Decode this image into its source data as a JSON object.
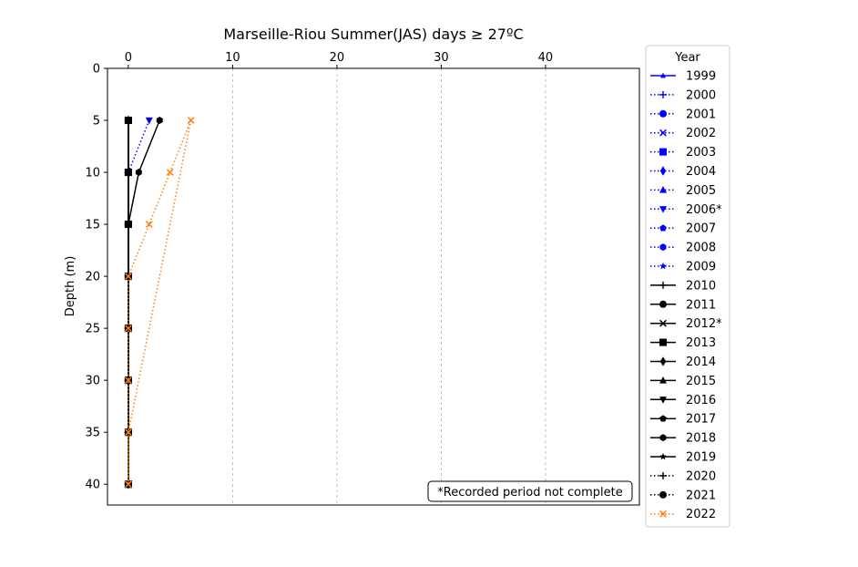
{
  "chart_data": {
    "type": "line",
    "title": "Marseille-Riou Summer(JAS) days ≥ 27ºC",
    "xlabel": "",
    "ylabel": "Depth (m)",
    "xlim": [
      -2,
      49
    ],
    "ylim": [
      42,
      0
    ],
    "x_ticks": [
      0,
      10,
      20,
      30,
      40
    ],
    "y_ticks": [
      0,
      5,
      10,
      15,
      20,
      25,
      30,
      35,
      40
    ],
    "x_axis_position": "top",
    "y_inverted": true,
    "grid": "vertical dashed",
    "legend_title": "Year",
    "legend_position": "right outside",
    "depths": [
      5,
      10,
      15,
      20,
      25,
      30,
      35,
      40
    ],
    "note": "*Recorded period not complete",
    "series": [
      {
        "name": "1999",
        "color": "#0000ff",
        "linestyle": "solid",
        "marker": "tri-up-small",
        "values": [
          0,
          0,
          0,
          0,
          0,
          0,
          0,
          0
        ]
      },
      {
        "name": "2000",
        "color": "#0000ff",
        "linestyle": "dotted",
        "marker": "plus",
        "values": [
          0,
          0,
          0,
          0,
          0,
          0,
          0,
          0
        ]
      },
      {
        "name": "2001",
        "color": "#0000ff",
        "linestyle": "dotted",
        "marker": "circle",
        "values": [
          0,
          0,
          0,
          0,
          0,
          0,
          0,
          0
        ]
      },
      {
        "name": "2002",
        "color": "#0000ff",
        "linestyle": "dotted",
        "marker": "x",
        "values": [
          0,
          0,
          0,
          0,
          0,
          0,
          0,
          0
        ]
      },
      {
        "name": "2003",
        "color": "#0000ff",
        "linestyle": "dotted",
        "marker": "square",
        "values": [
          0,
          0,
          0,
          0,
          0,
          0,
          0,
          0
        ]
      },
      {
        "name": "2004",
        "color": "#0000ff",
        "linestyle": "dotted",
        "marker": "diamond",
        "values": [
          0,
          0,
          0,
          0,
          0,
          0,
          0,
          0
        ]
      },
      {
        "name": "2005",
        "color": "#0000ff",
        "linestyle": "dotted",
        "marker": "triangle-up",
        "values": [
          0,
          0,
          0,
          0,
          0,
          0,
          0,
          0
        ]
      },
      {
        "name": "2006*",
        "color": "#0000ff",
        "linestyle": "dotted",
        "marker": "triangle-down",
        "values": [
          2,
          0,
          0,
          0,
          0,
          0,
          0,
          0
        ]
      },
      {
        "name": "2007",
        "color": "#0000ff",
        "linestyle": "dotted",
        "marker": "pentagon",
        "values": [
          0,
          0,
          0,
          0,
          0,
          0,
          0,
          0
        ]
      },
      {
        "name": "2008",
        "color": "#0000ff",
        "linestyle": "dotted",
        "marker": "hexagon",
        "values": [
          0,
          0,
          0,
          0,
          0,
          0,
          0,
          0
        ]
      },
      {
        "name": "2009",
        "color": "#0000ff",
        "linestyle": "dotted",
        "marker": "star",
        "values": [
          0,
          0,
          0,
          0,
          0,
          0,
          0,
          0
        ]
      },
      {
        "name": "2010",
        "color": "#000000",
        "linestyle": "solid",
        "marker": "plus",
        "values": [
          0,
          0,
          0,
          0,
          0,
          0,
          0,
          0
        ]
      },
      {
        "name": "2011",
        "color": "#000000",
        "linestyle": "solid",
        "marker": "circle",
        "values": [
          0,
          0,
          0,
          0,
          0,
          0,
          0,
          0
        ]
      },
      {
        "name": "2012*",
        "color": "#000000",
        "linestyle": "solid",
        "marker": "x",
        "values": [
          0,
          0,
          0,
          0,
          0,
          0,
          0,
          0
        ]
      },
      {
        "name": "2013",
        "color": "#000000",
        "linestyle": "solid",
        "marker": "square",
        "values": [
          0,
          0,
          0,
          0,
          0,
          0,
          0,
          0
        ]
      },
      {
        "name": "2014",
        "color": "#000000",
        "linestyle": "solid",
        "marker": "diamond",
        "values": [
          0,
          0,
          0,
          0,
          0,
          0,
          0,
          0
        ]
      },
      {
        "name": "2015",
        "color": "#000000",
        "linestyle": "solid",
        "marker": "triangle-up",
        "values": [
          0,
          0,
          0,
          0,
          0,
          0,
          0,
          0
        ]
      },
      {
        "name": "2016",
        "color": "#000000",
        "linestyle": "solid",
        "marker": "triangle-down",
        "values": [
          0,
          0,
          0,
          0,
          0,
          0,
          0,
          0
        ]
      },
      {
        "name": "2017",
        "color": "#000000",
        "linestyle": "solid",
        "marker": "pentagon",
        "values": [
          0,
          0,
          0,
          0,
          0,
          0,
          0,
          0
        ]
      },
      {
        "name": "2018",
        "color": "#000000",
        "linestyle": "solid",
        "marker": "hexagon",
        "values": [
          3,
          1,
          0,
          0,
          0,
          0,
          0,
          0
        ]
      },
      {
        "name": "2019",
        "color": "#000000",
        "linestyle": "solid",
        "marker": "star",
        "values": [
          0,
          0,
          0,
          0,
          0,
          0,
          0,
          0
        ]
      },
      {
        "name": "2020",
        "color": "#000000",
        "linestyle": "dotted",
        "marker": "plus",
        "values": [
          0,
          0,
          0,
          0,
          0,
          0,
          0,
          0
        ]
      },
      {
        "name": "2021",
        "color": "#000000",
        "linestyle": "dotted",
        "marker": "circle",
        "values": [
          0,
          0,
          0,
          0,
          0,
          0,
          0,
          0
        ]
      },
      {
        "name": "2022",
        "color": "#ff7f0e",
        "linestyle": "dotted",
        "marker": "x",
        "values": [
          6,
          4,
          2,
          0,
          0,
          0,
          0,
          0
        ]
      },
      {
        "name": "",
        "color": "#ff7f0e",
        "linestyle": "dotted",
        "marker": "none",
        "values": [
          6,
          5,
          4,
          3,
          2,
          1,
          0,
          0
        ]
      }
    ]
  }
}
